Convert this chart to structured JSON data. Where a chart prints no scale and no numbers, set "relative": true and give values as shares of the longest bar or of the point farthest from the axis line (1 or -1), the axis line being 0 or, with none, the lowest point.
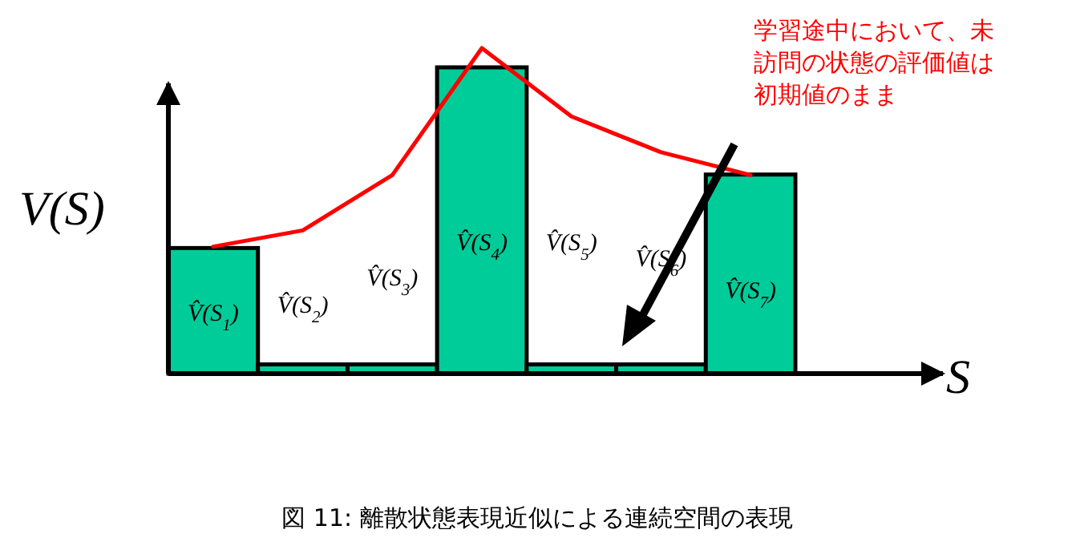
{
  "chart_data": [
    {
      "type": "bar",
      "relative": true,
      "title": "図 11: 離散状態表現近似による連続空間の表現",
      "xlabel": "S",
      "ylabel": "V(S)",
      "categories": [
        null,
        null,
        null,
        null,
        null,
        null,
        null
      ],
      "series": [
        {
          "color": "#00cc99",
          "values": [
            0.41,
            0.03,
            0.03,
            1,
            0.03,
            0.03,
            0.65
          ]
        }
      ],
      "annotations": [
        "V̂(S$_{1}$)",
        "V̂(S$_{2}$)",
        "V̂(S$_{3}$)",
        "V̂(S$_{4}$)",
        "V̂(S$_{5}$)",
        "V̂(S$_{6}$)",
        "V̂(S$_{7}$)",
        "学習途中において、未訪問の状態の評価値は初期値のまま"
      ]
    },
    {
      "type": "line",
      "relative": true,
      "categories": [
        null,
        null,
        null,
        null,
        null,
        null,
        null
      ],
      "series": [
        {
          "color": "#ff0000",
          "values": [
            0.39,
            0.44,
            0.61,
            1,
            0.79,
            0.68,
            0.61
          ]
        }
      ]
    }
  ]
}
